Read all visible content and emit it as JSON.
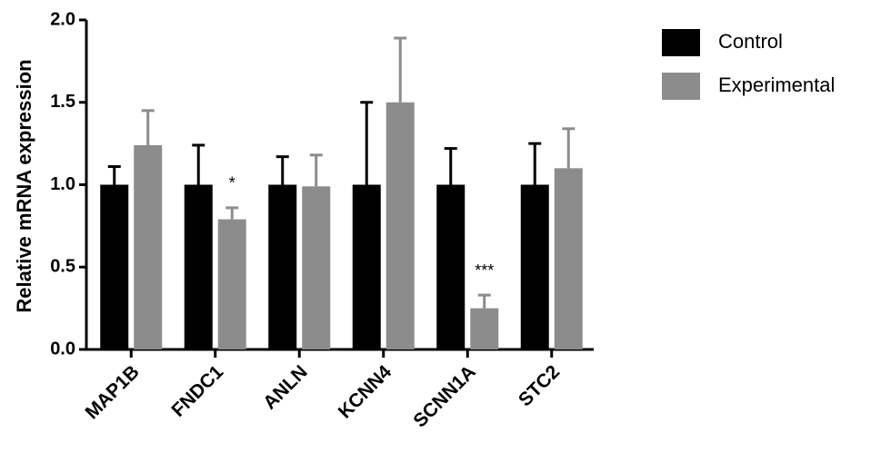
{
  "chart_data": {
    "type": "bar",
    "y_label": "Relative mRNA expression",
    "categories": [
      "MAP1B",
      "FNDC1",
      "ANLN",
      "KCNN4",
      "SCNN1A",
      "STC2"
    ],
    "series": [
      {
        "name": "Control",
        "color": "#000000",
        "values": [
          1.0,
          1.0,
          1.0,
          1.0,
          1.0,
          1.0
        ],
        "errors": [
          0.11,
          0.24,
          0.17,
          0.5,
          0.22,
          0.25
        ]
      },
      {
        "name": "Experimental",
        "color": "#8c8c8c",
        "values": [
          1.24,
          0.79,
          0.99,
          1.5,
          0.25,
          1.1
        ],
        "errors": [
          0.21,
          0.07,
          0.19,
          0.39,
          0.08,
          0.24
        ],
        "annotations": [
          null,
          "*",
          null,
          null,
          "***",
          null
        ]
      }
    ],
    "ylim": [
      0,
      2
    ],
    "yticks": [
      {
        "value": 0,
        "label": "0.0"
      },
      0.5,
      {
        "value": 1,
        "label": "1.0"
      },
      1.5,
      {
        "value": 2,
        "label": "2.0"
      }
    ],
    "legend": "top-right"
  }
}
